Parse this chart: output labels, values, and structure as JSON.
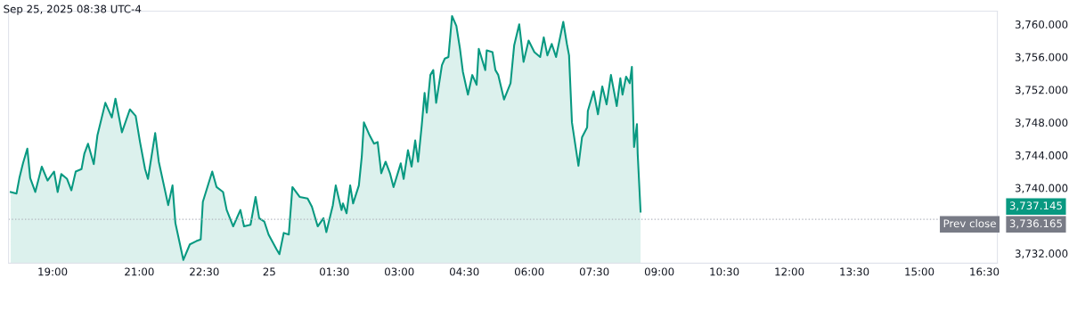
{
  "chart_data": {
    "type": "area",
    "annotations": [
      "Sep 25, 2025 08:38 UTC-4",
      "3,737.145",
      "3,736.165"
    ],
    "x": [
      "2025-09-24T18:02",
      "2025-09-24T18:10",
      "2025-09-24T18:14",
      "2025-09-24T18:19",
      "2025-09-24T18:25",
      "2025-09-24T18:29",
      "2025-09-24T18:36",
      "2025-09-24T18:45",
      "2025-09-24T18:53",
      "2025-09-24T19:02",
      "2025-09-24T19:07",
      "2025-09-24T19:12",
      "2025-09-24T19:20",
      "2025-09-24T19:26",
      "2025-09-24T19:32",
      "2025-09-24T19:40",
      "2025-09-24T19:44",
      "2025-09-24T19:49",
      "2025-09-24T19:57",
      "2025-09-24T20:02",
      "2025-09-24T20:13",
      "2025-09-24T20:22",
      "2025-09-24T20:27",
      "2025-09-24T20:36",
      "2025-09-24T20:47",
      "2025-09-24T20:55",
      "2025-09-24T21:01",
      "2025-09-24T21:08",
      "2025-09-24T21:12",
      "2025-09-24T21:22",
      "2025-09-24T21:27",
      "2025-09-24T21:40",
      "2025-09-24T21:46",
      "2025-09-24T21:50",
      "2025-09-24T22:01",
      "2025-09-24T22:10",
      "2025-09-24T22:19",
      "2025-09-24T22:25",
      "2025-09-24T22:28",
      "2025-09-24T22:41",
      "2025-09-24T22:47",
      "2025-09-24T22:56",
      "2025-09-24T23:01",
      "2025-09-24T23:10",
      "2025-09-24T23:20",
      "2025-09-24T23:25",
      "2025-09-24T23:34",
      "2025-09-24T23:41",
      "2025-09-24T23:46",
      "2025-09-24T23:53",
      "2025-09-24T23:59",
      "2025-09-25T00:10",
      "2025-09-25T00:14",
      "2025-09-25T00:20",
      "2025-09-25T00:27",
      "2025-09-25T00:32",
      "2025-09-25T00:42",
      "2025-09-25T00:53",
      "2025-09-25T00:59",
      "2025-09-25T01:07",
      "2025-09-25T01:15",
      "2025-09-25T01:19",
      "2025-09-25T01:28",
      "2025-09-25T01:32",
      "2025-09-25T01:40",
      "2025-09-25T01:42",
      "2025-09-25T01:47",
      "2025-09-25T01:52",
      "2025-09-25T01:56",
      "2025-09-25T02:04",
      "2025-09-25T02:08",
      "2025-09-25T02:11",
      "2025-09-25T02:19",
      "2025-09-25T02:25",
      "2025-09-25T02:30",
      "2025-09-25T02:35",
      "2025-09-25T02:41",
      "2025-09-25T02:47",
      "2025-09-25T02:52",
      "2025-09-25T03:02",
      "2025-09-25T03:06",
      "2025-09-25T03:12",
      "2025-09-25T03:17",
      "2025-09-25T03:22",
      "2025-09-25T03:26",
      "2025-09-25T03:31",
      "2025-09-25T03:35",
      "2025-09-25T03:38",
      "2025-09-25T03:43",
      "2025-09-25T03:47",
      "2025-09-25T03:51",
      "2025-09-25T03:59",
      "2025-09-25T04:03",
      "2025-09-25T04:08",
      "2025-09-25T04:13",
      "2025-09-25T04:19",
      "2025-09-25T04:24",
      "2025-09-25T04:28",
      "2025-09-25T04:35",
      "2025-09-25T04:41",
      "2025-09-25T04:47",
      "2025-09-25T04:50",
      "2025-09-25T04:59",
      "2025-09-25T05:01",
      "2025-09-25T05:09",
      "2025-09-25T05:13",
      "2025-09-25T05:17",
      "2025-09-25T05:25",
      "2025-09-25T05:34",
      "2025-09-25T05:39",
      "2025-09-25T05:46",
      "2025-09-25T05:52",
      "2025-09-25T05:59",
      "2025-09-25T06:07",
      "2025-09-25T06:15",
      "2025-09-25T06:20",
      "2025-09-25T06:25",
      "2025-09-25T06:31",
      "2025-09-25T06:37",
      "2025-09-25T06:47",
      "2025-09-25T06:52",
      "2025-09-25T06:55",
      "2025-09-25T06:59",
      "2025-09-25T07:08",
      "2025-09-25T07:13",
      "2025-09-25T07:20",
      "2025-09-25T07:21",
      "2025-09-25T07:29",
      "2025-09-25T07:35",
      "2025-09-25T07:41",
      "2025-09-25T07:47",
      "2025-09-25T07:53",
      "2025-09-25T08:01",
      "2025-09-25T08:06",
      "2025-09-25T08:09",
      "2025-09-25T08:14",
      "2025-09-25T08:19",
      "2025-09-25T08:22",
      "2025-09-25T08:25",
      "2025-09-25T08:29",
      "2025-09-25T08:30",
      "2025-09-25T08:34"
    ],
    "series": [
      {
        "color": "#089981",
        "values": [
          3739.5,
          3739.3,
          3741.2,
          3743.0,
          3744.8,
          3741.2,
          3739.5,
          3742.6,
          3740.9,
          3742.0,
          3739.5,
          3741.7,
          3741.1,
          3739.7,
          3742.0,
          3742.3,
          3744.2,
          3745.4,
          3742.9,
          3746.4,
          3750.4,
          3748.6,
          3750.9,
          3746.8,
          3749.6,
          3748.8,
          3745.6,
          3742.3,
          3741.1,
          3746.7,
          3743.2,
          3737.9,
          3740.3,
          3735.7,
          3731.2,
          3733.1,
          3733.5,
          3733.7,
          3738.3,
          3742.0,
          3740.1,
          3739.5,
          3737.3,
          3735.3,
          3737.3,
          3735.3,
          3735.5,
          3738.9,
          3736.3,
          3735.9,
          3734.3,
          3732.5,
          3731.9,
          3734.5,
          3734.3,
          3740.1,
          3738.9,
          3738.7,
          3737.7,
          3735.3,
          3736.3,
          3734.6,
          3737.9,
          3740.3,
          3737.3,
          3738.1,
          3736.9,
          3740.3,
          3738.1,
          3740.3,
          3743.8,
          3748.0,
          3746.4,
          3745.4,
          3745.6,
          3741.8,
          3743.2,
          3741.8,
          3740.1,
          3743.0,
          3741.1,
          3744.6,
          3742.6,
          3745.8,
          3743.2,
          3747.6,
          3751.6,
          3749.2,
          3753.8,
          3754.4,
          3750.4,
          3755.0,
          3755.8,
          3756.0,
          3761.0,
          3759.8,
          3757.0,
          3754.2,
          3751.4,
          3753.8,
          3752.6,
          3757.0,
          3754.4,
          3756.8,
          3756.6,
          3754.4,
          3753.8,
          3750.8,
          3752.8,
          3757.4,
          3760.0,
          3755.4,
          3758.0,
          3756.6,
          3756.0,
          3758.4,
          3756.2,
          3757.6,
          3756.0,
          3760.3,
          3757.6,
          3756.2,
          3748.0,
          3742.7,
          3746.2,
          3747.4,
          3749.4,
          3751.8,
          3749.0,
          3752.4,
          3750.2,
          3753.8,
          3750.0,
          3753.4,
          3751.4,
          3753.6,
          3752.8,
          3754.8,
          3745.0,
          3747.8,
          3744.2,
          3737.1
        ]
      }
    ],
    "xlim": [
      "2025-09-24T17:59",
      "2025-09-25T16:48"
    ],
    "xticks": [
      {
        "value": "2025-09-24T19:00",
        "label": "19:00"
      },
      {
        "value": "2025-09-24T21:00",
        "label": "21:00"
      },
      {
        "value": "2025-09-24T22:30",
        "label": "22:30"
      },
      {
        "value": "2025-09-25T00:00",
        "label": "25"
      },
      {
        "value": "2025-09-25T01:30",
        "label": "01:30"
      },
      {
        "value": "2025-09-25T03:00",
        "label": "03:00"
      },
      {
        "value": "2025-09-25T04:30",
        "label": "04:30"
      },
      {
        "value": "2025-09-25T06:00",
        "label": "06:00"
      },
      {
        "value": "2025-09-25T07:30",
        "label": "07:30"
      },
      {
        "value": "2025-09-25T09:00",
        "label": "09:00"
      },
      {
        "value": "2025-09-25T10:30",
        "label": "10:30"
      },
      {
        "value": "2025-09-25T12:00",
        "label": "12:00"
      },
      {
        "value": "2025-09-25T13:30",
        "label": "13:30"
      },
      {
        "value": "2025-09-25T15:00",
        "label": "15:00"
      },
      {
        "value": "2025-09-25T16:30",
        "label": "16:30"
      }
    ],
    "ylim": [
      3730.8,
      3761.6
    ],
    "yticks": [
      {
        "value": 3732,
        "label": "3,732.000"
      },
      {
        "value": 3740,
        "label": "3,740.000"
      },
      {
        "value": 3744,
        "label": "3,744.000"
      },
      {
        "value": 3748,
        "label": "3,748.000"
      },
      {
        "value": 3752,
        "label": "3,752.000"
      },
      {
        "value": 3756,
        "label": "3,756.000"
      },
      {
        "value": 3760,
        "label": "3,760.000"
      }
    ],
    "ref_lines": [
      {
        "axis": "y",
        "value": 3736.165,
        "label": "Prev close",
        "color": "#b2b5be",
        "line_style": "dotted"
      }
    ],
    "grid": false,
    "legend": false
  }
}
